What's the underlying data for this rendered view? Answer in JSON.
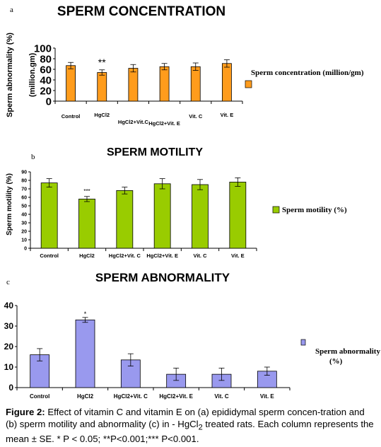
{
  "chart_data": [
    {
      "type": "bar",
      "panel_label": "a",
      "title": "SPERM CONCENTRATION",
      "ylabel_outer": "Sperm abnormality (%)",
      "ylabel_inner": "(million.gm)",
      "xlabel": "",
      "ylim": [
        0,
        100
      ],
      "yticks": [
        0,
        20,
        40,
        60,
        80,
        100
      ],
      "grid": false,
      "legend_position": "right",
      "color": "#ff9c1c",
      "categories": [
        "Control",
        "HgCl2",
        "HgCl2+Vit.C",
        "HgCl2+Vit. E",
        "Vit. C",
        "Vit. E"
      ],
      "series": [
        {
          "name": "Sperm concentration (million/gm)",
          "values": [
            67,
            54,
            62,
            65,
            65,
            71
          ],
          "errors": [
            6,
            5,
            7,
            6,
            7,
            7
          ]
        }
      ],
      "significance": [
        "",
        "**",
        "",
        "",
        "",
        ""
      ]
    },
    {
      "type": "bar",
      "panel_label": "b",
      "title": "SPERM MOTILITY",
      "ylabel": "Sperm motility (%)",
      "xlabel": "",
      "ylim": [
        0,
        90
      ],
      "yticks": [
        0,
        10,
        20,
        30,
        40,
        50,
        60,
        70,
        80,
        90
      ],
      "grid": false,
      "legend_position": "right",
      "color": "#99cc00",
      "categories": [
        "Control",
        "HgCl2",
        "HgCl2+Vit. C",
        "HgCl2+Vit. E",
        "Vit. C",
        "Vit. E"
      ],
      "series": [
        {
          "name": "Sperm motility (%)",
          "values": [
            77,
            58,
            68,
            76,
            75,
            78
          ],
          "errors": [
            5,
            3,
            4,
            6,
            6,
            5
          ]
        }
      ],
      "significance": [
        "",
        "***",
        "",
        "",
        "",
        ""
      ]
    },
    {
      "type": "bar",
      "panel_label": "c",
      "title": "SPERM ABNORMALITY",
      "ylabel": "",
      "xlabel": "",
      "ylim": [
        0,
        40
      ],
      "yticks": [
        0,
        10,
        20,
        30,
        40
      ],
      "grid": false,
      "legend_position": "right",
      "color": "#9999ee",
      "categories": [
        "Control",
        "HgCl2",
        "HgCl2+Vit. C",
        "HgCl2+Vit. E",
        "Vit. C",
        "Vit. E"
      ],
      "series": [
        {
          "name": "Sperm abnormality (%)",
          "values": [
            16,
            33,
            13.5,
            6.5,
            6.5,
            8
          ],
          "errors": [
            3,
            1.2,
            3,
            3,
            3,
            2
          ]
        }
      ],
      "significance": [
        "",
        "*",
        "",
        "",
        "",
        ""
      ]
    }
  ],
  "caption": {
    "label": "Figure 2:",
    "text_before_sub": " Effect of vitamin C and vitamin E on (a) epididymal sperm concen-tration and (b) sperm motility and abnormality (c) in - HgCl",
    "sub": "2",
    "text_after_sub": " treated rats. Each column represents the mean ± SE. * P < 0.05; **P<0.001;*** P<0.001."
  }
}
